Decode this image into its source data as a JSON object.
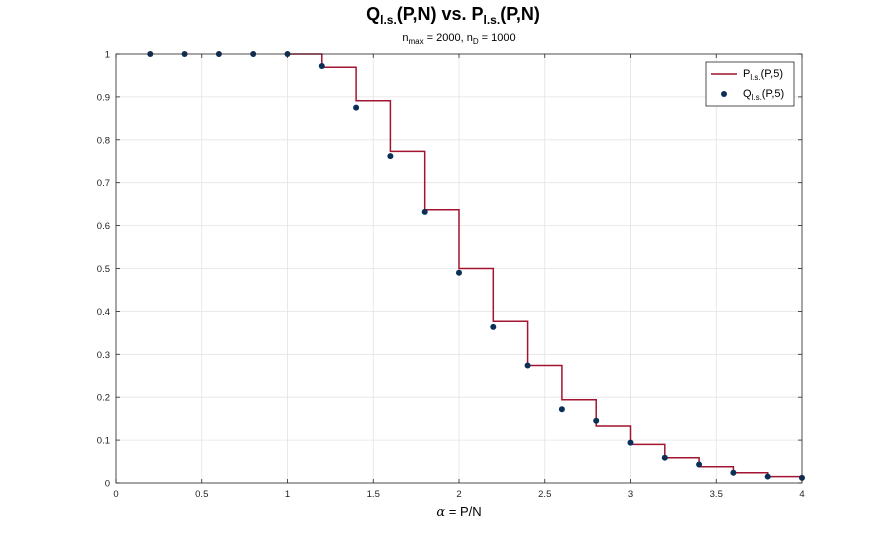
{
  "chart_data": {
    "type": "line",
    "title": {
      "q_main": "Q",
      "q_sub": "l.s.",
      "mid": "(P,N) vs. P",
      "p_sub": "l.s.",
      "end": "(P,N)"
    },
    "subtitle": {
      "n1": "n",
      "n1_sub": "max",
      "n1_val": " = 2000, n",
      "n2_sub": "D",
      "n2_val": " = 1000"
    },
    "xlabel": {
      "alpha": "α",
      "rest": " = P/N"
    },
    "ylabel": "",
    "xlim": [
      0,
      4
    ],
    "ylim": [
      0,
      1
    ],
    "x_ticks": [
      0,
      0.5,
      1,
      1.5,
      2,
      2.5,
      3,
      3.5,
      4
    ],
    "x_tick_labels": [
      "0",
      "0.5",
      "1",
      "1.5",
      "2",
      "2.5",
      "3",
      "3.5",
      "4"
    ],
    "y_ticks": [
      0,
      0.1,
      0.2,
      0.3,
      0.4,
      0.5,
      0.6,
      0.7,
      0.8,
      0.9,
      1
    ],
    "y_tick_labels": [
      "0",
      "0.1",
      "0.2",
      "0.3",
      "0.4",
      "0.5",
      "0.6",
      "0.7",
      "0.8",
      "0.9",
      "1"
    ],
    "grid": true,
    "legend_position": "top-right",
    "series": [
      {
        "kind": "stairs",
        "name_main": "P",
        "name_sub": "l.s.",
        "name_end": "(P,5)",
        "color": "#a2142f",
        "x": [
          1.0,
          1.2,
          1.4,
          1.6,
          1.8,
          2.0,
          2.2,
          2.4,
          2.6,
          2.8,
          3.0,
          3.2,
          3.4,
          3.6,
          3.8,
          4.0
        ],
        "y": [
          1.0,
          0.969,
          0.891,
          0.773,
          0.637,
          0.5,
          0.377,
          0.274,
          0.194,
          0.133,
          0.09,
          0.059,
          0.038,
          0.024,
          0.015,
          0.015
        ]
      },
      {
        "kind": "scatter",
        "name_main": "Q",
        "name_sub": "l.s.",
        "name_end": "(P,5)",
        "color": "#0b3058",
        "x": [
          0.2,
          0.4,
          0.6,
          0.8,
          1.0,
          1.2,
          1.4,
          1.6,
          1.8,
          2.0,
          2.2,
          2.4,
          2.6,
          2.8,
          3.0,
          3.2,
          3.4,
          3.6,
          3.8,
          4.0
        ],
        "y": [
          1.0,
          1.0,
          1.0,
          1.0,
          1.0,
          0.972,
          0.875,
          0.762,
          0.632,
          0.49,
          0.364,
          0.274,
          0.172,
          0.145,
          0.094,
          0.059,
          0.043,
          0.024,
          0.015,
          0.012
        ]
      }
    ]
  }
}
